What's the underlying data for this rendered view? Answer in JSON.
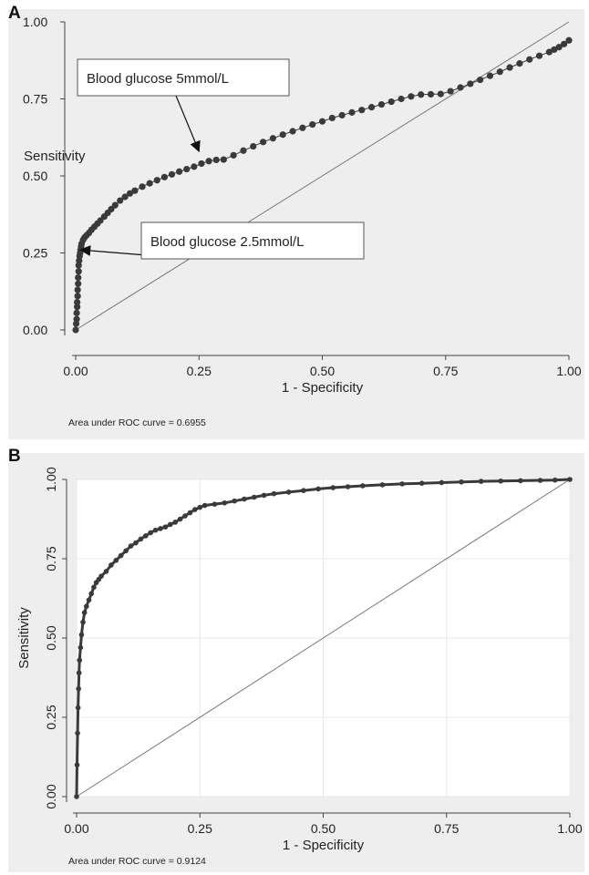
{
  "figure": {
    "panel_a_letter": "A",
    "panel_b_letter": "B"
  },
  "colors": {
    "panel_background": "#eeeeee",
    "plot_background_b": "#ffffff",
    "curve": "#3a3a3a",
    "reference_line": "#777777"
  },
  "chart_data": [
    {
      "type": "line",
      "panel": "A",
      "xlabel": "1 - Specificity",
      "ylabel": "Sensitivity",
      "xlim": [
        0,
        1
      ],
      "ylim": [
        0,
        1
      ],
      "xticks": [
        "0.00",
        "0.25",
        "0.50",
        "0.75",
        "1.00"
      ],
      "yticks": [
        "0.00",
        "0.25",
        "0.50",
        "0.75",
        "1.00"
      ],
      "grid": false,
      "markers": true,
      "footnote": "Area under ROC curve = 0.6955",
      "reference_line": [
        [
          0,
          0
        ],
        [
          1,
          1
        ]
      ],
      "annotations": [
        {
          "text": "Blood glucose 5mmol/L",
          "point": [
            0.25,
            0.58
          ]
        },
        {
          "text": "Blood glucose 2.5mmol/L",
          "point": [
            0.01,
            0.26
          ]
        }
      ],
      "series": [
        {
          "x": [
            0.0,
            0.001,
            0.002,
            0.002,
            0.003,
            0.003,
            0.004,
            0.004,
            0.005,
            0.005,
            0.006,
            0.006,
            0.007,
            0.008,
            0.009,
            0.01,
            0.011,
            0.012,
            0.015,
            0.018,
            0.022,
            0.027,
            0.032,
            0.038,
            0.044,
            0.05,
            0.058,
            0.065,
            0.072,
            0.08,
            0.09,
            0.1,
            0.11,
            0.12,
            0.135,
            0.15,
            0.165,
            0.18,
            0.195,
            0.21,
            0.225,
            0.24,
            0.255,
            0.27,
            0.285,
            0.3,
            0.32,
            0.34,
            0.36,
            0.38,
            0.4,
            0.42,
            0.44,
            0.46,
            0.48,
            0.5,
            0.52,
            0.54,
            0.56,
            0.58,
            0.6,
            0.62,
            0.64,
            0.66,
            0.68,
            0.7,
            0.72,
            0.74,
            0.76,
            0.78,
            0.8,
            0.82,
            0.84,
            0.86,
            0.88,
            0.9,
            0.92,
            0.94,
            0.96,
            0.97,
            0.98,
            0.99,
            1.0
          ],
          "y": [
            0.0,
            0.02,
            0.035,
            0.055,
            0.075,
            0.09,
            0.11,
            0.13,
            0.15,
            0.17,
            0.19,
            0.21,
            0.225,
            0.24,
            0.25,
            0.26,
            0.27,
            0.28,
            0.292,
            0.3,
            0.307,
            0.315,
            0.325,
            0.335,
            0.345,
            0.355,
            0.368,
            0.38,
            0.392,
            0.405,
            0.42,
            0.432,
            0.443,
            0.452,
            0.465,
            0.476,
            0.486,
            0.496,
            0.505,
            0.514,
            0.522,
            0.53,
            0.54,
            0.548,
            0.552,
            0.553,
            0.567,
            0.582,
            0.596,
            0.61,
            0.622,
            0.634,
            0.645,
            0.656,
            0.667,
            0.677,
            0.688,
            0.697,
            0.706,
            0.714,
            0.723,
            0.732,
            0.741,
            0.75,
            0.758,
            0.764,
            0.765,
            0.766,
            0.775,
            0.787,
            0.799,
            0.812,
            0.825,
            0.838,
            0.852,
            0.865,
            0.878,
            0.89,
            0.902,
            0.91,
            0.918,
            0.928,
            0.94
          ]
        }
      ]
    },
    {
      "type": "line",
      "panel": "B",
      "xlabel": "1 - Specificity",
      "ylabel": "Sensitivity",
      "xlim": [
        0,
        1
      ],
      "ylim": [
        0,
        1
      ],
      "xticks": [
        "0.00",
        "0.25",
        "0.50",
        "0.75",
        "1.00"
      ],
      "yticks": [
        "0.00",
        "0.25",
        "0.50",
        "0.75",
        "1.00"
      ],
      "grid": true,
      "markers": true,
      "footnote": "Area under ROC curve = 0.9124",
      "reference_line": [
        [
          0,
          0
        ],
        [
          1,
          1
        ]
      ],
      "series": [
        {
          "x": [
            0.0,
            0.001,
            0.002,
            0.003,
            0.004,
            0.005,
            0.006,
            0.008,
            0.01,
            0.013,
            0.016,
            0.02,
            0.025,
            0.03,
            0.035,
            0.04,
            0.045,
            0.05,
            0.06,
            0.07,
            0.08,
            0.09,
            0.1,
            0.11,
            0.12,
            0.13,
            0.14,
            0.15,
            0.16,
            0.17,
            0.18,
            0.19,
            0.2,
            0.21,
            0.22,
            0.23,
            0.24,
            0.25,
            0.26,
            0.28,
            0.3,
            0.32,
            0.34,
            0.36,
            0.38,
            0.4,
            0.43,
            0.46,
            0.49,
            0.52,
            0.55,
            0.58,
            0.62,
            0.66,
            0.7,
            0.74,
            0.78,
            0.82,
            0.86,
            0.9,
            0.94,
            0.97,
            1.0
          ],
          "y": [
            0.0,
            0.1,
            0.2,
            0.28,
            0.34,
            0.39,
            0.43,
            0.47,
            0.51,
            0.55,
            0.58,
            0.6,
            0.62,
            0.64,
            0.66,
            0.675,
            0.685,
            0.695,
            0.71,
            0.73,
            0.745,
            0.76,
            0.775,
            0.79,
            0.8,
            0.812,
            0.822,
            0.832,
            0.84,
            0.845,
            0.85,
            0.858,
            0.865,
            0.875,
            0.885,
            0.895,
            0.905,
            0.912,
            0.918,
            0.922,
            0.926,
            0.932,
            0.938,
            0.944,
            0.95,
            0.955,
            0.96,
            0.965,
            0.97,
            0.974,
            0.977,
            0.98,
            0.983,
            0.986,
            0.988,
            0.99,
            0.992,
            0.994,
            0.995,
            0.996,
            0.997,
            0.998,
            1.0
          ]
        }
      ]
    }
  ]
}
